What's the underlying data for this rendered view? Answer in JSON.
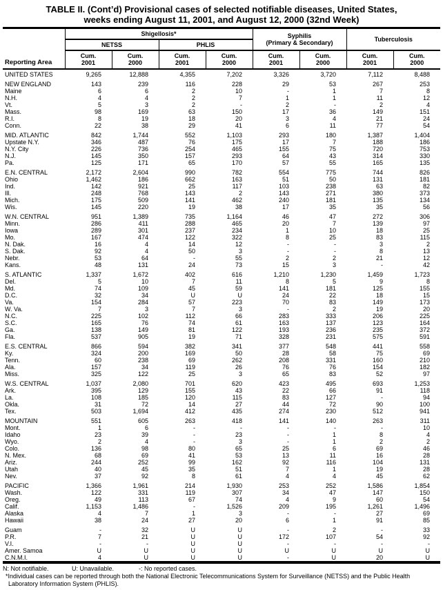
{
  "title": {
    "line1": "TABLE II. (Cont’d) Provisional cases of selected notifiable diseases, United States,",
    "line2": "weeks ending August 11, 2001, and August 12, 2000 (32nd Week)"
  },
  "header": {
    "reporting_area": "Reporting Area",
    "shigellosis": "Shigellosis*",
    "netss": "NETSS",
    "phlis": "PHLIS",
    "syphilis": "Syphilis\n(Primary & Secondary)",
    "tuberculosis": "Tuberculosis",
    "cum2001": "Cum.\n2001",
    "cum2000": "Cum.\n2000"
  },
  "table": {
    "sections": [
      {
        "rows": [
          {
            "area": "UNITED STATES",
            "values": [
              "9,265",
              "12,888",
              "4,355",
              "7,202",
              "3,326",
              "3,720",
              "7,112",
              "8,488"
            ]
          }
        ]
      },
      {
        "rows": [
          {
            "area": "NEW ENGLAND",
            "values": [
              "143",
              "239",
              "116",
              "228",
              "29",
              "53",
              "267",
              "253"
            ]
          },
          {
            "area": "Maine",
            "values": [
              "6",
              "6",
              "2",
              "10",
              "-",
              "1",
              "7",
              "8"
            ]
          },
          {
            "area": "N.H.",
            "values": [
              "4",
              "4",
              "2",
              "7",
              "1",
              "1",
              "11",
              "12"
            ]
          },
          {
            "area": "Vt.",
            "values": [
              "5",
              "3",
              "2",
              "-",
              "2",
              "-",
              "2",
              "4"
            ]
          },
          {
            "area": "Mass.",
            "values": [
              "98",
              "169",
              "63",
              "150",
              "17",
              "36",
              "149",
              "151"
            ]
          },
          {
            "area": "R.I.",
            "values": [
              "8",
              "19",
              "18",
              "20",
              "3",
              "4",
              "21",
              "24"
            ]
          },
          {
            "area": "Conn.",
            "values": [
              "22",
              "38",
              "29",
              "41",
              "6",
              "11",
              "77",
              "54"
            ]
          }
        ]
      },
      {
        "rows": [
          {
            "area": "MID. ATLANTIC",
            "values": [
              "842",
              "1,744",
              "552",
              "1,103",
              "293",
              "180",
              "1,387",
              "1,404"
            ]
          },
          {
            "area": "Upstate N.Y.",
            "values": [
              "346",
              "487",
              "76",
              "175",
              "17",
              "7",
              "188",
              "186"
            ]
          },
          {
            "area": "N.Y. City",
            "values": [
              "226",
              "736",
              "254",
              "465",
              "155",
              "75",
              "720",
              "753"
            ]
          },
          {
            "area": "N.J.",
            "values": [
              "145",
              "350",
              "157",
              "293",
              "64",
              "43",
              "314",
              "330"
            ]
          },
          {
            "area": "Pa.",
            "values": [
              "125",
              "171",
              "65",
              "170",
              "57",
              "55",
              "165",
              "135"
            ]
          }
        ]
      },
      {
        "rows": [
          {
            "area": "E.N. CENTRAL",
            "values": [
              "2,172",
              "2,604",
              "990",
              "782",
              "554",
              "775",
              "744",
              "826"
            ]
          },
          {
            "area": "Ohio",
            "values": [
              "1,462",
              "186",
              "662",
              "163",
              "51",
              "50",
              "131",
              "181"
            ]
          },
          {
            "area": "Ind.",
            "values": [
              "142",
              "921",
              "25",
              "117",
              "103",
              "238",
              "63",
              "82"
            ]
          },
          {
            "area": "Ill.",
            "values": [
              "248",
              "768",
              "143",
              "2",
              "143",
              "271",
              "380",
              "373"
            ]
          },
          {
            "area": "Mich.",
            "values": [
              "175",
              "509",
              "141",
              "462",
              "240",
              "181",
              "135",
              "134"
            ]
          },
          {
            "area": "Wis.",
            "values": [
              "145",
              "220",
              "19",
              "38",
              "17",
              "35",
              "35",
              "56"
            ]
          }
        ]
      },
      {
        "rows": [
          {
            "area": "W.N. CENTRAL",
            "values": [
              "951",
              "1,389",
              "735",
              "1,164",
              "46",
              "47",
              "272",
              "306"
            ]
          },
          {
            "area": "Minn.",
            "values": [
              "286",
              "411",
              "288",
              "465",
              "20",
              "7",
              "139",
              "97"
            ]
          },
          {
            "area": "Iowa",
            "values": [
              "289",
              "301",
              "237",
              "234",
              "1",
              "10",
              "18",
              "25"
            ]
          },
          {
            "area": "Mo.",
            "values": [
              "167",
              "474",
              "122",
              "322",
              "8",
              "25",
              "83",
              "115"
            ]
          },
          {
            "area": "N. Dak.",
            "values": [
              "16",
              "4",
              "14",
              "12",
              "-",
              "-",
              "3",
              "2"
            ]
          },
          {
            "area": "S. Dak.",
            "values": [
              "92",
              "4",
              "50",
              "3",
              "-",
              "-",
              "8",
              "13"
            ]
          },
          {
            "area": "Nebr.",
            "values": [
              "53",
              "64",
              "-",
              "55",
              "2",
              "2",
              "21",
              "12"
            ]
          },
          {
            "area": "Kans.",
            "values": [
              "48",
              "131",
              "24",
              "73",
              "15",
              "3",
              "-",
              "42"
            ]
          }
        ]
      },
      {
        "rows": [
          {
            "area": "S. ATLANTIC",
            "values": [
              "1,337",
              "1,672",
              "402",
              "616",
              "1,210",
              "1,230",
              "1,459",
              "1,723"
            ]
          },
          {
            "area": "Del.",
            "values": [
              "5",
              "10",
              "7",
              "11",
              "8",
              "5",
              "9",
              "8"
            ]
          },
          {
            "area": "Md.",
            "values": [
              "74",
              "109",
              "45",
              "59",
              "141",
              "181",
              "125",
              "155"
            ]
          },
          {
            "area": "D.C.",
            "values": [
              "32",
              "34",
              "U",
              "U",
              "24",
              "22",
              "18",
              "15"
            ]
          },
          {
            "area": "Va.",
            "values": [
              "154",
              "284",
              "57",
              "223",
              "70",
              "83",
              "149",
              "173"
            ]
          },
          {
            "area": "W. Va.",
            "values": [
              "7",
              "3",
              "7",
              "3",
              "-",
              "2",
              "19",
              "20"
            ]
          },
          {
            "area": "N.C.",
            "values": [
              "225",
              "102",
              "112",
              "66",
              "283",
              "333",
              "206",
              "225"
            ]
          },
          {
            "area": "S.C.",
            "values": [
              "165",
              "76",
              "74",
              "61",
              "163",
              "137",
              "123",
              "164"
            ]
          },
          {
            "area": "Ga.",
            "values": [
              "138",
              "149",
              "81",
              "122",
              "193",
              "236",
              "235",
              "372"
            ]
          },
          {
            "area": "Fla.",
            "values": [
              "537",
              "905",
              "19",
              "71",
              "328",
              "231",
              "575",
              "591"
            ]
          }
        ]
      },
      {
        "rows": [
          {
            "area": "E.S. CENTRAL",
            "values": [
              "866",
              "594",
              "382",
              "341",
              "377",
              "548",
              "441",
              "558"
            ]
          },
          {
            "area": "Ky.",
            "values": [
              "324",
              "200",
              "169",
              "50",
              "28",
              "58",
              "75",
              "69"
            ]
          },
          {
            "area": "Tenn.",
            "values": [
              "60",
              "238",
              "69",
              "262",
              "208",
              "331",
              "160",
              "210"
            ]
          },
          {
            "area": "Ala.",
            "values": [
              "157",
              "34",
              "119",
              "26",
              "76",
              "76",
              "154",
              "182"
            ]
          },
          {
            "area": "Miss.",
            "values": [
              "325",
              "122",
              "25",
              "3",
              "65",
              "83",
              "52",
              "97"
            ]
          }
        ]
      },
      {
        "rows": [
          {
            "area": "W.S. CENTRAL",
            "values": [
              "1,037",
              "2,080",
              "701",
              "620",
              "423",
              "495",
              "693",
              "1,253"
            ]
          },
          {
            "area": "Ark.",
            "values": [
              "395",
              "129",
              "155",
              "43",
              "22",
              "66",
              "91",
              "118"
            ]
          },
          {
            "area": "La.",
            "values": [
              "108",
              "185",
              "120",
              "115",
              "83",
              "127",
              "-",
              "94"
            ]
          },
          {
            "area": "Okla.",
            "values": [
              "31",
              "72",
              "14",
              "27",
              "44",
              "72",
              "90",
              "100"
            ]
          },
          {
            "area": "Tex.",
            "values": [
              "503",
              "1,694",
              "412",
              "435",
              "274",
              "230",
              "512",
              "941"
            ]
          }
        ]
      },
      {
        "rows": [
          {
            "area": "MOUNTAIN",
            "values": [
              "551",
              "605",
              "263",
              "418",
              "141",
              "140",
              "263",
              "311"
            ]
          },
          {
            "area": "Mont.",
            "values": [
              "1",
              "6",
              "-",
              "-",
              "-",
              "-",
              "-",
              "10"
            ]
          },
          {
            "area": "Idaho",
            "values": [
              "23",
              "39",
              "-",
              "23",
              "-",
              "1",
              "8",
              "4"
            ]
          },
          {
            "area": "Wyo.",
            "values": [
              "2",
              "4",
              "-",
              "3",
              "-",
              "1",
              "2",
              "2"
            ]
          },
          {
            "area": "Colo.",
            "values": [
              "136",
              "98",
              "80",
              "65",
              "25",
              "6",
              "69",
              "46"
            ]
          },
          {
            "area": "N. Mex.",
            "values": [
              "68",
              "69",
              "41",
              "53",
              "13",
              "11",
              "16",
              "28"
            ]
          },
          {
            "area": "Ariz.",
            "values": [
              "244",
              "252",
              "99",
              "162",
              "92",
              "116",
              "104",
              "131"
            ]
          },
          {
            "area": "Utah",
            "values": [
              "40",
              "45",
              "35",
              "51",
              "7",
              "1",
              "19",
              "28"
            ]
          },
          {
            "area": "Nev.",
            "values": [
              "37",
              "92",
              "8",
              "61",
              "4",
              "4",
              "45",
              "62"
            ]
          }
        ]
      },
      {
        "rows": [
          {
            "area": "PACIFIC",
            "values": [
              "1,366",
              "1,961",
              "214",
              "1,930",
              "253",
              "252",
              "1,586",
              "1,854"
            ]
          },
          {
            "area": "Wash.",
            "values": [
              "122",
              "331",
              "119",
              "307",
              "34",
              "47",
              "147",
              "150"
            ]
          },
          {
            "area": "Oreg.",
            "values": [
              "49",
              "113",
              "67",
              "74",
              "4",
              "9",
              "60",
              "54"
            ]
          },
          {
            "area": "Calif.",
            "values": [
              "1,153",
              "1,486",
              "-",
              "1,526",
              "209",
              "195",
              "1,261",
              "1,496"
            ]
          },
          {
            "area": "Alaska",
            "values": [
              "4",
              "7",
              "1",
              "3",
              "-",
              "-",
              "27",
              "69"
            ]
          },
          {
            "area": "Hawaii",
            "values": [
              "38",
              "24",
              "27",
              "20",
              "6",
              "1",
              "91",
              "85"
            ]
          }
        ]
      },
      {
        "rows": [
          {
            "area": "Guam",
            "values": [
              "-",
              "32",
              "U",
              "U",
              "-",
              "2",
              "-",
              "33"
            ]
          },
          {
            "area": "P.R.",
            "values": [
              "7",
              "21",
              "U",
              "U",
              "172",
              "107",
              "54",
              "92"
            ]
          },
          {
            "area": "V.I.",
            "values": [
              "-",
              "-",
              "U",
              "U",
              "-",
              "-",
              "-",
              "-"
            ]
          },
          {
            "area": "Amer. Samoa",
            "values": [
              "U",
              "U",
              "U",
              "U",
              "U",
              "U",
              "U",
              "U"
            ]
          },
          {
            "area": "C.N.M.I.",
            "values": [
              "4",
              "U",
              "U",
              "U",
              "-",
              "U",
              "20",
              "U"
            ]
          }
        ]
      }
    ]
  },
  "footnotes": {
    "n": "N: Not notifiable.",
    "u": "U: Unavailable.",
    "dash": "-: No reported cases.",
    "star": "*Individual cases can be reported through both the National Electronic Telecommunications System for Surveillance (NETSS) and the Public Health Laboratory Information System (PHLIS)."
  }
}
